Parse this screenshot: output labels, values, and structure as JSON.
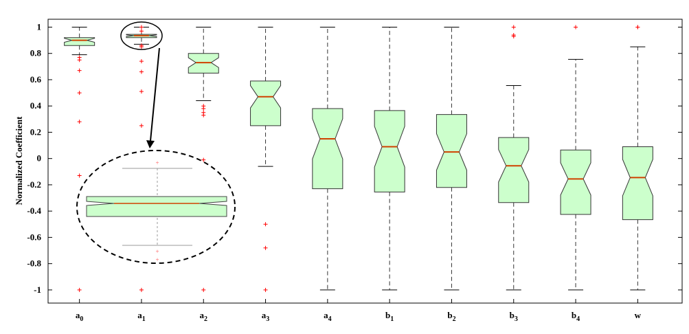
{
  "chart_data": {
    "type": "box",
    "y_label": "Normalized Coefficient",
    "categories": [
      "a0",
      "a1",
      "a2",
      "a3",
      "a4",
      "b1",
      "b2",
      "b3",
      "b4",
      "w"
    ],
    "ylim": [
      -1.1,
      1.06
    ],
    "yticks": [
      -1,
      -0.8,
      -0.6,
      -0.4,
      -0.2,
      0,
      0.2,
      0.4,
      0.6,
      0.8,
      1
    ],
    "box_color": "#ccffcc",
    "median_color": "#d04000",
    "outlier_color": "#ff0000",
    "boxes": [
      {
        "whisker_low": 0.79,
        "q1": 0.86,
        "median": 0.9,
        "q3": 0.92,
        "whisker_high": 1,
        "outliers": [
          0.77,
          0.75,
          0.67,
          0.5,
          0.28,
          -0.13,
          -1
        ]
      },
      {
        "whisker_low": 0.87,
        "q1": 0.92,
        "median": 0.935,
        "q3": 0.945,
        "whisker_high": 1,
        "outliers": [
          1,
          0.97,
          0.86,
          0.85,
          0.74,
          0.66,
          0.51,
          0.25,
          -1
        ]
      },
      {
        "whisker_low": 0.44,
        "q1": 0.65,
        "median": 0.73,
        "q3": 0.8,
        "whisker_high": 1,
        "outliers": [
          0.4,
          0.38,
          0.35,
          0.33,
          -0.01,
          -1
        ]
      },
      {
        "whisker_low": -0.06,
        "q1": 0.25,
        "median": 0.47,
        "q3": 0.59,
        "whisker_high": 1,
        "outliers": [
          -0.5,
          -0.68,
          -1
        ]
      },
      {
        "whisker_low": -1,
        "q1": -0.23,
        "median": 0.15,
        "q3": 0.38,
        "whisker_high": 1,
        "outliers": []
      },
      {
        "whisker_low": -1,
        "q1": -0.255,
        "median": 0.09,
        "q3": 0.365,
        "whisker_high": 1,
        "outliers": []
      },
      {
        "whisker_low": -1,
        "q1": -0.22,
        "median": 0.05,
        "q3": 0.335,
        "whisker_high": 1,
        "outliers": []
      },
      {
        "whisker_low": -1,
        "q1": -0.335,
        "median": -0.055,
        "q3": 0.16,
        "whisker_high": 0.555,
        "outliers": [
          1,
          0.94,
          0.93
        ]
      },
      {
        "whisker_low": -1,
        "q1": -0.425,
        "median": -0.155,
        "q3": 0.065,
        "whisker_high": 0.755,
        "outliers": [
          1
        ]
      },
      {
        "whisker_low": -1,
        "q1": -0.465,
        "median": -0.145,
        "q3": 0.09,
        "whisker_high": 0.85,
        "outliers": [
          1,
          1
        ]
      }
    ]
  }
}
